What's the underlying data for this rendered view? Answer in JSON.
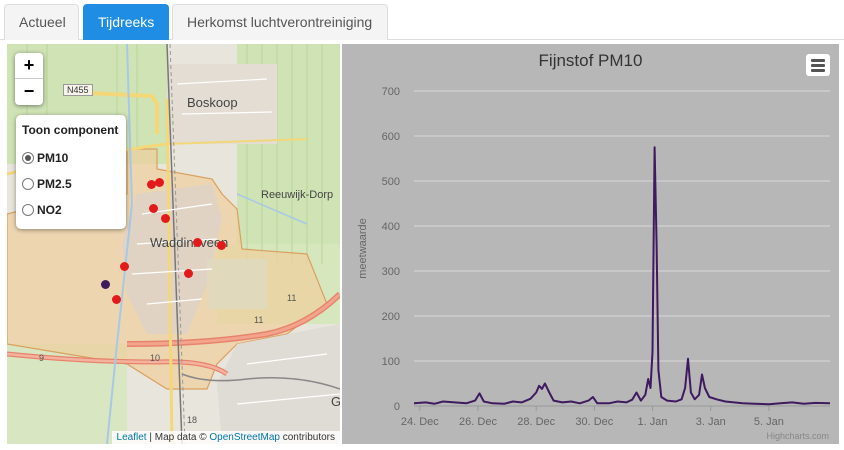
{
  "tabs": [
    {
      "label": "Actueel",
      "active": false
    },
    {
      "label": "Tijdreeks",
      "active": true
    },
    {
      "label": "Herkomst luchtverontreiniging",
      "active": false
    }
  ],
  "map": {
    "zoom_in": "+",
    "zoom_out": "−",
    "layers_title": "Toon component",
    "components": [
      {
        "label": "PM10",
        "selected": true
      },
      {
        "label": "PM2.5",
        "selected": false
      },
      {
        "label": "NO2",
        "selected": false
      }
    ],
    "places": {
      "boskoop": "Boskoop",
      "reeuwijk": "Reeuwijk-Dorp",
      "waddinxveen": "Waddinxveen",
      "g": "G"
    },
    "road_shield": "N455",
    "road_numbers": {
      "r11a": "11",
      "r11b": "11",
      "r9": "9",
      "r10": "10",
      "r18": "18"
    },
    "attribution": {
      "leaflet": "Leaflet",
      "sep": " | Map data © ",
      "osm": "OpenStreetMap",
      "tail": " contributors"
    },
    "colors": {
      "sensor": "#e31a1c",
      "selected_sensor": "#3f1a5f"
    }
  },
  "chart_data": {
    "type": "line",
    "title": "Fijnstof PM10",
    "ylabel": "meetwaarde",
    "xlabel": "",
    "ylim": [
      0,
      700
    ],
    "yticks": [
      0,
      100,
      200,
      300,
      400,
      500,
      600,
      700
    ],
    "xlim": [
      -0.2,
      14.1
    ],
    "xticks": [
      {
        "pos": 0,
        "label": "24. Dec"
      },
      {
        "pos": 2,
        "label": "26. Dec"
      },
      {
        "pos": 4,
        "label": "28. Dec"
      },
      {
        "pos": 6,
        "label": "30. Dec"
      },
      {
        "pos": 8,
        "label": "1. Jan"
      },
      {
        "pos": 10,
        "label": "3. Jan"
      },
      {
        "pos": 12,
        "label": "5. Jan"
      }
    ],
    "grid": true,
    "series": [
      {
        "color": "#3f1a5f",
        "points": [
          [
            -0.2,
            6
          ],
          [
            0.2,
            8
          ],
          [
            0.5,
            5
          ],
          [
            0.8,
            10
          ],
          [
            1.2,
            8
          ],
          [
            1.6,
            6
          ],
          [
            1.9,
            12
          ],
          [
            2.05,
            28
          ],
          [
            2.2,
            10
          ],
          [
            2.5,
            6
          ],
          [
            2.9,
            5
          ],
          [
            3.2,
            10
          ],
          [
            3.5,
            8
          ],
          [
            3.8,
            16
          ],
          [
            4.0,
            30
          ],
          [
            4.1,
            45
          ],
          [
            4.2,
            38
          ],
          [
            4.3,
            50
          ],
          [
            4.45,
            30
          ],
          [
            4.6,
            12
          ],
          [
            4.9,
            8
          ],
          [
            5.2,
            10
          ],
          [
            5.5,
            6
          ],
          [
            5.8,
            12
          ],
          [
            5.95,
            20
          ],
          [
            6.1,
            6
          ],
          [
            6.5,
            6
          ],
          [
            6.8,
            10
          ],
          [
            7.1,
            8
          ],
          [
            7.3,
            14
          ],
          [
            7.45,
            30
          ],
          [
            7.6,
            12
          ],
          [
            7.75,
            25
          ],
          [
            7.85,
            60
          ],
          [
            7.93,
            40
          ],
          [
            8.0,
            120
          ],
          [
            8.07,
            575
          ],
          [
            8.14,
            360
          ],
          [
            8.2,
            80
          ],
          [
            8.3,
            20
          ],
          [
            8.5,
            12
          ],
          [
            8.8,
            10
          ],
          [
            9.0,
            15
          ],
          [
            9.12,
            40
          ],
          [
            9.22,
            105
          ],
          [
            9.32,
            30
          ],
          [
            9.45,
            15
          ],
          [
            9.6,
            25
          ],
          [
            9.7,
            70
          ],
          [
            9.8,
            40
          ],
          [
            9.95,
            20
          ],
          [
            10.2,
            15
          ],
          [
            10.5,
            10
          ],
          [
            10.8,
            8
          ],
          [
            11.1,
            6
          ],
          [
            11.5,
            5
          ],
          [
            12.0,
            4
          ],
          [
            12.4,
            6
          ],
          [
            12.8,
            8
          ],
          [
            13.2,
            5
          ],
          [
            13.6,
            7
          ],
          [
            14.1,
            6
          ]
        ]
      }
    ],
    "credits": "Highcharts.com"
  }
}
